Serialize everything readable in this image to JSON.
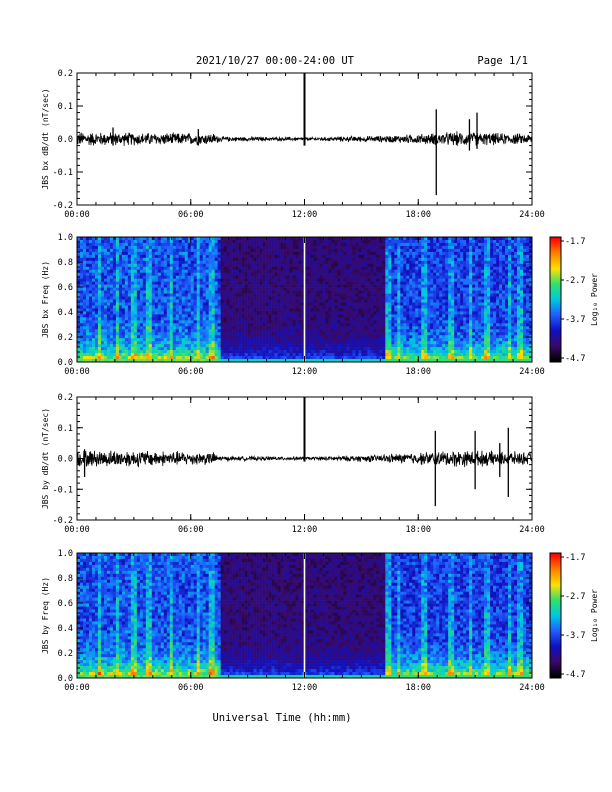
{
  "header": {
    "title": "2021/10/27  00:00-24:00 UT",
    "page": "Page 1/1"
  },
  "footer": {
    "xlabel": "Universal Time (hh:mm)"
  },
  "colorbar": {
    "label": "Log₁₀ Power",
    "ticks": [
      "-1.7",
      "-2.7",
      "-3.7",
      "-4.7"
    ],
    "range": [
      -4.7,
      -1.7
    ],
    "colormap": [
      "#000000",
      "#3a0a6a",
      "#1010c0",
      "#1f5fff",
      "#00c8e0",
      "#30e070",
      "#ffe000",
      "#ff8000",
      "#ff0000"
    ]
  },
  "chart_data": [
    {
      "type": "line",
      "ylabel": "JBS bx dB/dt (nT/sec)",
      "xlim": [
        0,
        24
      ],
      "ylim": [
        -0.2,
        0.2
      ],
      "x_ticks": [
        "00:00",
        "06:00",
        "12:00",
        "18:00",
        "24:00"
      ],
      "y_ticks": [
        "0.2",
        "0.1",
        "0.0",
        "-0.1",
        "-0.2"
      ],
      "baseline": 0.0,
      "noise_profile": [
        {
          "x": 0,
          "amp": 0.018
        },
        {
          "x": 3,
          "amp": 0.016
        },
        {
          "x": 7.2,
          "amp": 0.014
        },
        {
          "x": 7.6,
          "amp": 0.006
        },
        {
          "x": 12,
          "amp": 0.004
        },
        {
          "x": 16,
          "amp": 0.008
        },
        {
          "x": 18,
          "amp": 0.012
        },
        {
          "x": 20,
          "amp": 0.018
        },
        {
          "x": 24,
          "amp": 0.012
        }
      ],
      "spikes": [
        {
          "x": 12.0,
          "min": -0.02,
          "max": 0.22
        },
        {
          "x": 18.95,
          "min": -0.17,
          "max": 0.09
        },
        {
          "x": 21.1,
          "min": -0.03,
          "max": 0.08
        },
        {
          "x": 20.7,
          "min": -0.035,
          "max": 0.06
        },
        {
          "x": 1.9,
          "min": -0.02,
          "max": 0.035
        },
        {
          "x": 6.4,
          "min": -0.02,
          "max": 0.03
        }
      ]
    },
    {
      "type": "heatmap",
      "ylabel": "JBS bx Freq (Hz)",
      "xlim": [
        0,
        24
      ],
      "ylim": [
        0.0,
        1.0
      ],
      "x_ticks": [
        "00:00",
        "06:00",
        "12:00",
        "18:00",
        "24:00"
      ],
      "y_ticks": [
        "1.0",
        "0.8",
        "0.6",
        "0.4",
        "0.2",
        "0.0"
      ],
      "quiet_interval": [
        7.5,
        16.2
      ],
      "gap": 12.0
    },
    {
      "type": "line",
      "ylabel": "JBS by dB/dt (nT/sec)",
      "xlim": [
        0,
        24
      ],
      "ylim": [
        -0.2,
        0.2
      ],
      "x_ticks": [
        "00:00",
        "06:00",
        "12:00",
        "18:00",
        "24:00"
      ],
      "y_ticks": [
        "0.2",
        "0.1",
        "0.0",
        "-0.1",
        "-0.2"
      ],
      "baseline": 0.0,
      "noise_profile": [
        {
          "x": 0,
          "amp": 0.022
        },
        {
          "x": 3,
          "amp": 0.022
        },
        {
          "x": 7.2,
          "amp": 0.016
        },
        {
          "x": 7.6,
          "amp": 0.006
        },
        {
          "x": 12,
          "amp": 0.004
        },
        {
          "x": 16,
          "amp": 0.01
        },
        {
          "x": 18,
          "amp": 0.016
        },
        {
          "x": 20,
          "amp": 0.022
        },
        {
          "x": 24,
          "amp": 0.016
        }
      ],
      "spikes": [
        {
          "x": 12.0,
          "min": -0.01,
          "max": 0.21
        },
        {
          "x": 18.9,
          "min": -0.155,
          "max": 0.09
        },
        {
          "x": 21.0,
          "min": -0.1,
          "max": 0.09
        },
        {
          "x": 22.75,
          "min": -0.125,
          "max": 0.1
        },
        {
          "x": 22.3,
          "min": -0.06,
          "max": 0.05
        },
        {
          "x": 0.4,
          "min": -0.06,
          "max": 0.03
        }
      ]
    },
    {
      "type": "heatmap",
      "ylabel": "JBS by Freq (Hz)",
      "xlim": [
        0,
        24
      ],
      "ylim": [
        0.0,
        1.0
      ],
      "x_ticks": [
        "00:00",
        "06:00",
        "12:00",
        "18:00",
        "24:00"
      ],
      "y_ticks": [
        "1.0",
        "0.8",
        "0.6",
        "0.4",
        "0.2",
        "0.0"
      ],
      "quiet_interval": [
        7.5,
        16.2
      ],
      "gap": 12.0
    }
  ]
}
